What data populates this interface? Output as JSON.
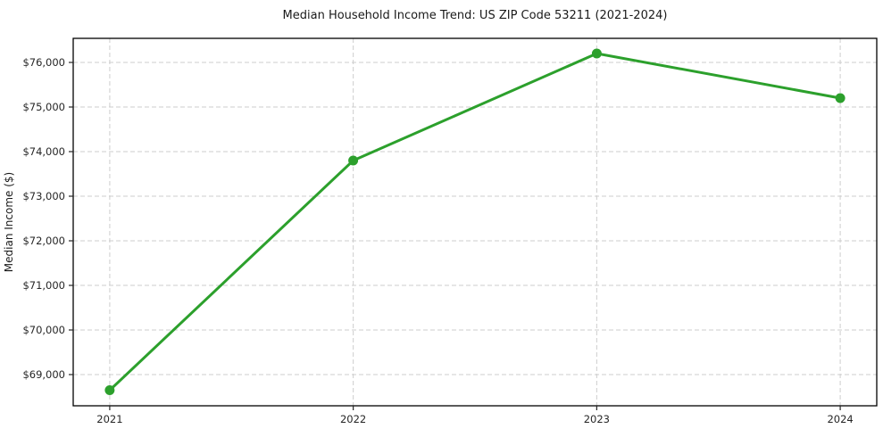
{
  "chart_data": {
    "type": "line",
    "title": "Median Household Income Trend: US ZIP Code 53211 (2021-2024)",
    "xlabel": "",
    "ylabel": "Median Income ($)",
    "x": [
      "2021",
      "2022",
      "2023",
      "2024"
    ],
    "series": [
      {
        "name": "Median Household Income",
        "values": [
          68650,
          73800,
          76200,
          75200
        ]
      }
    ],
    "yticks": [
      69000,
      70000,
      71000,
      72000,
      73000,
      74000,
      75000,
      76000
    ],
    "ytick_labels": [
      "$69,000",
      "$70,000",
      "$71,000",
      "$72,000",
      "$73,000",
      "$74,000",
      "$75,000",
      "$76,000"
    ],
    "ylim": [
      68300,
      76540
    ],
    "xlim": [
      -0.15,
      3.15
    ],
    "grid": "dashed, both axes",
    "legend": "none",
    "line_color": "#2ca02c",
    "marker": "circle",
    "grid_color": "#cdcdcd",
    "frame_color": "#000000",
    "background_color": "#ffffff"
  }
}
